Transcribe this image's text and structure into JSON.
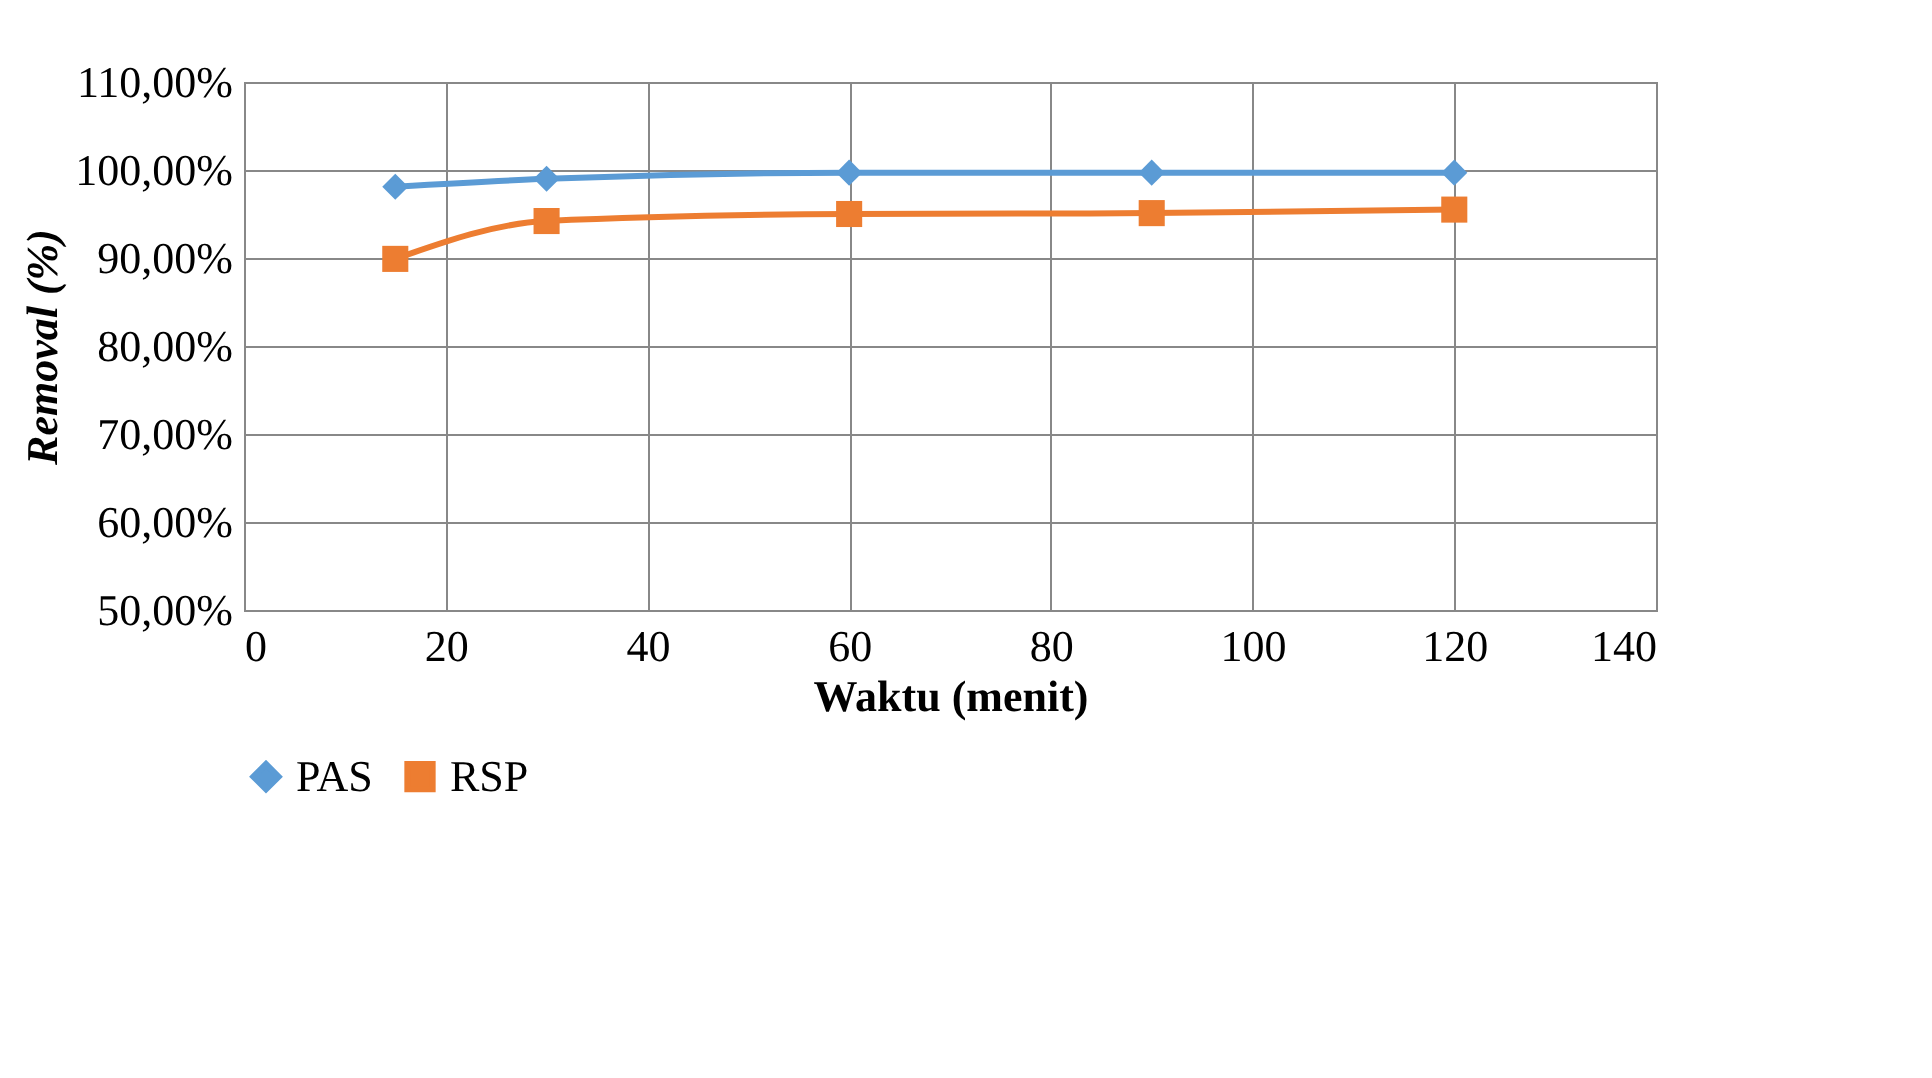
{
  "chart_data": {
    "type": "line",
    "xlabel": "Waktu (menit)",
    "ylabel": "Removal (%)",
    "x": [
      15,
      30,
      60,
      90,
      120
    ],
    "series": [
      {
        "name": "PAS",
        "color": "#5b9bd5",
        "marker": "diamond",
        "values": [
          98.1,
          99.0,
          99.7,
          99.7,
          99.7
        ]
      },
      {
        "name": "RSP",
        "color": "#ed7d31",
        "marker": "square",
        "values": [
          89.9,
          94.2,
          95.0,
          95.1,
          95.5
        ]
      }
    ],
    "xlim": [
      0,
      140
    ],
    "xticks": [
      0,
      20,
      40,
      60,
      80,
      100,
      120,
      140
    ],
    "ylim": [
      50,
      110
    ],
    "yticks": [
      {
        "value": 50,
        "label": "50,00%"
      },
      {
        "value": 60,
        "label": "60,00%"
      },
      {
        "value": 70,
        "label": "70,00%"
      },
      {
        "value": 80,
        "label": "80,00%"
      },
      {
        "value": 90,
        "label": "90,00%"
      },
      {
        "value": 100,
        "label": "100,00%"
      },
      {
        "value": 110,
        "label": "110,00%"
      }
    ],
    "grid": true,
    "legend": "bottom",
    "line_style": "solid"
  }
}
